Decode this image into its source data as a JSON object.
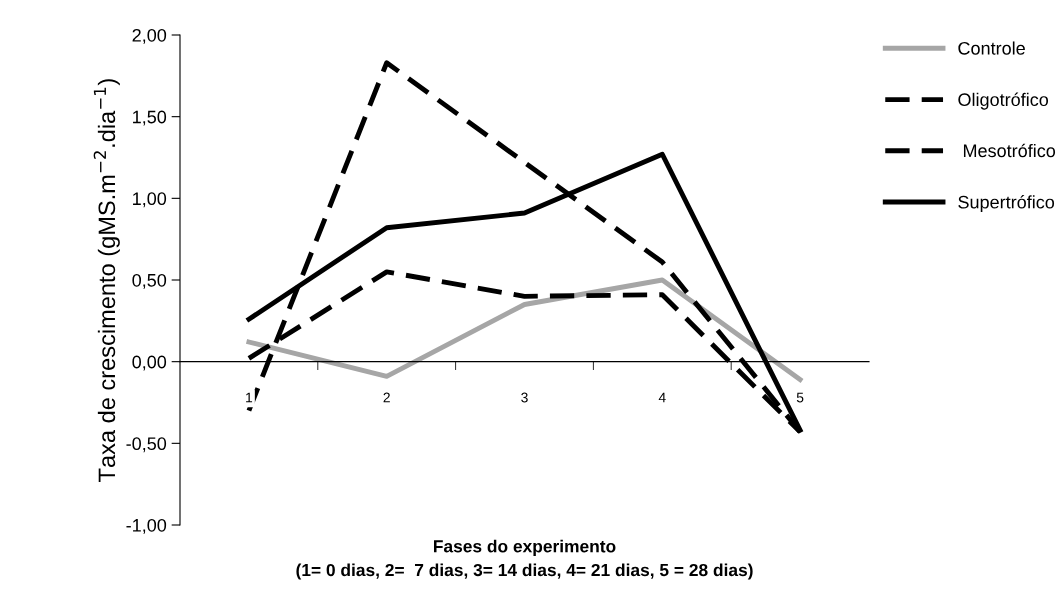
{
  "chart_data": {
    "type": "line",
    "xlabel": "Fases do experimento\n(1= 0 dias, 2=  7 dias, 3= 14 dias, 4= 21 dias, 5 = 28 dias)",
    "ylabel": "Taxa de crescimento (gMS.m$^{−2}$.dia$^{−1}$)",
    "categories": [
      "1",
      "2",
      "3",
      "4",
      "5"
    ],
    "ylim": [
      -1,
      2
    ],
    "yticks": [
      {
        "value": -1,
        "label": "-1,00"
      },
      {
        "value": -0.5,
        "label": "-0,50"
      },
      {
        "value": 0,
        "label": "0,00"
      },
      {
        "value": 0.5,
        "label": "0,50"
      },
      {
        "value": 1,
        "label": "1,00"
      },
      {
        "value": 1.5,
        "label": "1,50"
      },
      {
        "value": 2,
        "label": "2,00"
      }
    ],
    "grid": false,
    "legend": "right",
    "marker": "none",
    "series": [
      {
        "name": "Controle",
        "color": "#a6a6a6",
        "line_style": "solid",
        "values": [
          0.12,
          -0.09,
          0.35,
          0.5,
          -0.11
        ]
      },
      {
        "name": "Oligotrófico",
        "color": "#000000",
        "line_style": "dashed",
        "values": [
          0.02,
          0.55,
          0.4,
          0.41,
          -0.43
        ]
      },
      {
        "name": " Mesotrófico",
        "color": "#000000",
        "line_style": "dashed",
        "values": [
          -0.3,
          1.83,
          1.22,
          0.61,
          -0.43
        ]
      },
      {
        "name": "Supertrófico",
        "color": "#000000",
        "line_style": "solid",
        "values": [
          0.26,
          0.82,
          0.91,
          1.27,
          -0.42
        ]
      }
    ]
  }
}
